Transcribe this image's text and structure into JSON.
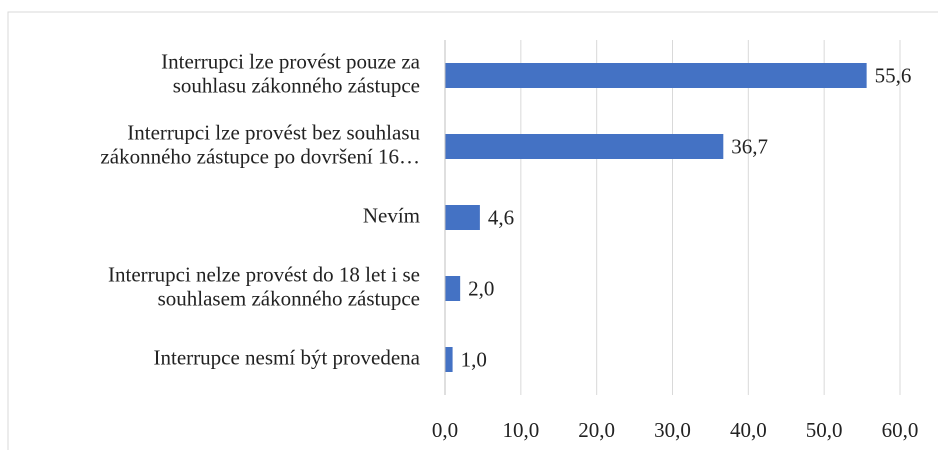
{
  "chart_data": {
    "type": "bar",
    "orientation": "horizontal",
    "categories": [
      "Interrupci lze provést pouze za\nsouhlasu zákonného zástupce",
      "Interrupci lze provést bez souhlasu\nzákonného zástupce po dovršení 16…",
      "Nevím",
      "Interrupci nelze provést do 18 let i se\nsouhlasem zákonného zástupce",
      "Interrupce nesmí být provedena"
    ],
    "values": [
      55.6,
      36.7,
      4.6,
      2.0,
      1.0
    ],
    "value_labels": [
      "55,6",
      "36,7",
      "4,6",
      "2,0",
      "1,0"
    ],
    "color": "#4472c4",
    "xlim": [
      0,
      60
    ],
    "xticks": [
      {
        "value": 0,
        "label": "0,0"
      },
      {
        "value": 10,
        "label": "10,0"
      },
      {
        "value": 20,
        "label": "20,0"
      },
      {
        "value": 30,
        "label": "30,0"
      },
      {
        "value": 40,
        "label": "40,0"
      },
      {
        "value": 50,
        "label": "50,0"
      },
      {
        "value": 60,
        "label": "60,0"
      }
    ],
    "grid": true
  }
}
